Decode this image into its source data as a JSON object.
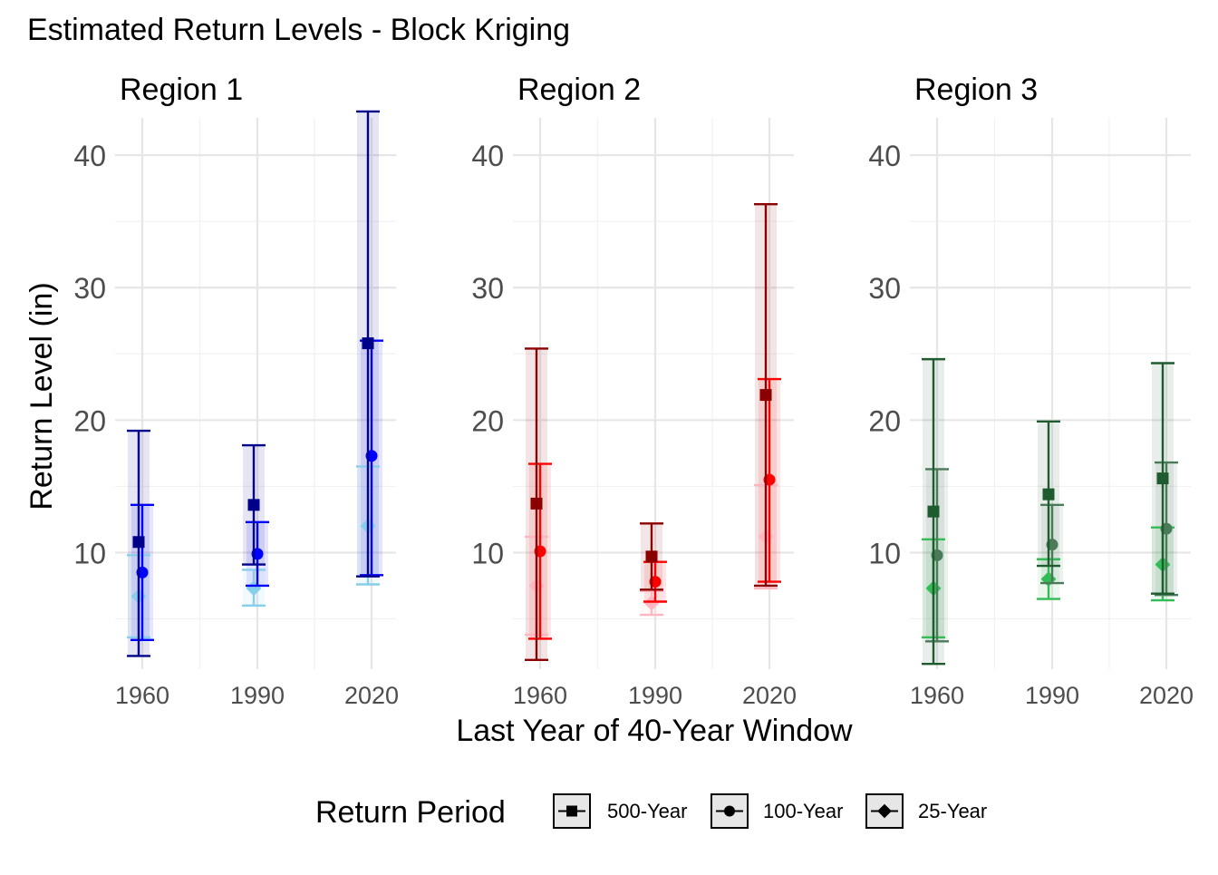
{
  "chart_data": {
    "type": "errorbar",
    "title": "Estimated Return Levels - Block Kriging",
    "xlabel": "Last Year of 40-Year Window",
    "ylabel": "Return Level (in)",
    "x_ticks": [
      "1960",
      "1990",
      "2020"
    ],
    "y_ticks": [
      10,
      20,
      30,
      40
    ],
    "ylim": [
      1.2,
      43.5
    ],
    "grid": true,
    "legend": {
      "title": "Return Period",
      "position": "bottom",
      "entries": [
        {
          "label": "500-Year",
          "shape": "square"
        },
        {
          "label": "100-Year",
          "shape": "circle"
        },
        {
          "label": "25-Year",
          "shape": "diamond"
        }
      ]
    },
    "panels": [
      {
        "title": "Region 1",
        "colors": {
          "500-Year": "#00008b",
          "100-Year": "#0000ff",
          "25-Year": "#87ceeb"
        },
        "series": [
          {
            "name": "500-Year",
            "points": [
              {
                "x": "1960",
                "y": 10.8,
                "lo": 2.2,
                "hi": 19.2
              },
              {
                "x": "1990",
                "y": 13.6,
                "lo": 9.1,
                "hi": 18.1
              },
              {
                "x": "2020",
                "y": 25.8,
                "lo": 8.2,
                "hi": 43.3
              }
            ]
          },
          {
            "name": "100-Year",
            "points": [
              {
                "x": "1960",
                "y": 8.5,
                "lo": 3.4,
                "hi": 13.6
              },
              {
                "x": "1990",
                "y": 9.9,
                "lo": 7.5,
                "hi": 12.3
              },
              {
                "x": "2020",
                "y": 17.3,
                "lo": 8.3,
                "hi": 26.0
              }
            ]
          },
          {
            "name": "25-Year",
            "points": [
              {
                "x": "1960",
                "y": 6.7,
                "lo": 3.6,
                "hi": 9.8
              },
              {
                "x": "1990",
                "y": 7.3,
                "lo": 6.0,
                "hi": 8.7
              },
              {
                "x": "2020",
                "y": 12.0,
                "lo": 7.6,
                "hi": 16.5
              }
            ]
          }
        ]
      },
      {
        "title": "Region 2",
        "colors": {
          "500-Year": "#8b0000",
          "100-Year": "#ff0000",
          "25-Year": "#ffb6c1"
        },
        "series": [
          {
            "name": "500-Year",
            "points": [
              {
                "x": "1960",
                "y": 13.7,
                "lo": 1.9,
                "hi": 25.4
              },
              {
                "x": "1990",
                "y": 9.7,
                "lo": 7.2,
                "hi": 12.2
              },
              {
                "x": "2020",
                "y": 21.9,
                "lo": 7.5,
                "hi": 36.3
              }
            ]
          },
          {
            "name": "100-Year",
            "points": [
              {
                "x": "1960",
                "y": 10.1,
                "lo": 3.5,
                "hi": 16.7
              },
              {
                "x": "1990",
                "y": 7.8,
                "lo": 6.3,
                "hi": 9.3
              },
              {
                "x": "2020",
                "y": 15.5,
                "lo": 7.8,
                "hi": 23.1
              }
            ]
          },
          {
            "name": "25-Year",
            "points": [
              {
                "x": "1960",
                "y": 7.5,
                "lo": 3.8,
                "hi": 11.2
              },
              {
                "x": "1990",
                "y": 6.2,
                "lo": 5.3,
                "hi": 7.1
              },
              {
                "x": "2020",
                "y": 11.2,
                "lo": 7.3,
                "hi": 15.1
              }
            ]
          }
        ]
      },
      {
        "title": "Region 3",
        "colors": {
          "500-Year": "#1e5b2e",
          "100-Year": "#4a7a58",
          "25-Year": "#33bb55"
        },
        "series": [
          {
            "name": "500-Year",
            "points": [
              {
                "x": "1960",
                "y": 13.1,
                "lo": 1.6,
                "hi": 24.6
              },
              {
                "x": "1990",
                "y": 14.4,
                "lo": 9.0,
                "hi": 19.9
              },
              {
                "x": "2020",
                "y": 15.6,
                "lo": 6.9,
                "hi": 24.3
              }
            ]
          },
          {
            "name": "100-Year",
            "points": [
              {
                "x": "1960",
                "y": 9.8,
                "lo": 3.3,
                "hi": 16.3
              },
              {
                "x": "1990",
                "y": 10.6,
                "lo": 7.7,
                "hi": 13.6
              },
              {
                "x": "2020",
                "y": 11.8,
                "lo": 6.8,
                "hi": 16.8
              }
            ]
          },
          {
            "name": "25-Year",
            "points": [
              {
                "x": "1960",
                "y": 7.3,
                "lo": 3.6,
                "hi": 11.0
              },
              {
                "x": "1990",
                "y": 8.0,
                "lo": 6.5,
                "hi": 9.5
              },
              {
                "x": "2020",
                "y": 9.1,
                "lo": 6.4,
                "hi": 11.9
              }
            ]
          }
        ]
      }
    ]
  }
}
